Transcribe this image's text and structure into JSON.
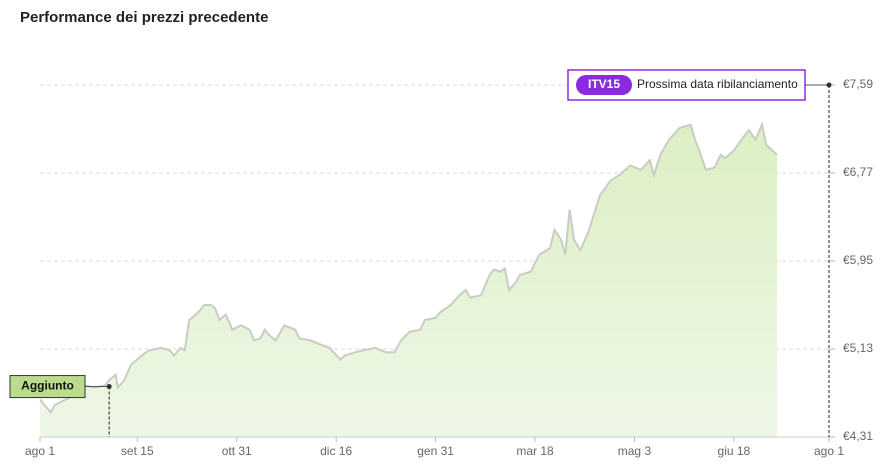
{
  "chart_data": {
    "type": "area",
    "title": "Performance dei prezzi precedente",
    "x": [
      0,
      2,
      5,
      7,
      12,
      16,
      21,
      25,
      30,
      32,
      35,
      36,
      39,
      42,
      46,
      49,
      51,
      56,
      60,
      62,
      65,
      67,
      69,
      72,
      74,
      76,
      79,
      81,
      83,
      86,
      89,
      93,
      97,
      99,
      102,
      104,
      106,
      109,
      113,
      118,
      120,
      125,
      130,
      134,
      139,
      141,
      146,
      150,
      155,
      160,
      164,
      167,
      171,
      176,
      178,
      183,
      185,
      190,
      194,
      197,
      199,
      204,
      208,
      210,
      213,
      215,
      217,
      220,
      222,
      227,
      231,
      236,
      238,
      241,
      243,
      245,
      247,
      250,
      254,
      259,
      264,
      268,
      273,
      278,
      282,
      284,
      287,
      291,
      296,
      301,
      303,
      305,
      308,
      312,
      315,
      317,
      321,
      326,
      328,
      331,
      334,
      336,
      341
    ],
    "values": [
      4.66,
      4.61,
      4.54,
      4.61,
      4.66,
      4.7,
      4.79,
      4.77,
      4.79,
      4.84,
      4.89,
      4.77,
      4.84,
      4.98,
      5.05,
      5.1,
      5.12,
      5.14,
      5.12,
      5.07,
      5.14,
      5.12,
      5.4,
      5.45,
      5.49,
      5.54,
      5.54,
      5.51,
      5.4,
      5.45,
      5.31,
      5.35,
      5.31,
      5.21,
      5.23,
      5.31,
      5.26,
      5.21,
      5.35,
      5.31,
      5.23,
      5.21,
      5.17,
      5.14,
      5.03,
      5.07,
      5.1,
      5.12,
      5.14,
      5.1,
      5.1,
      5.21,
      5.29,
      5.31,
      5.4,
      5.42,
      5.47,
      5.54,
      5.63,
      5.68,
      5.61,
      5.63,
      5.82,
      5.87,
      5.85,
      5.88,
      5.68,
      5.75,
      5.82,
      5.85,
      6.01,
      6.07,
      6.24,
      6.15,
      6.01,
      6.43,
      6.15,
      6.05,
      6.24,
      6.56,
      6.7,
      6.75,
      6.84,
      6.8,
      6.89,
      6.75,
      6.94,
      7.08,
      7.19,
      7.22,
      7.08,
      6.98,
      6.8,
      6.82,
      6.94,
      6.91,
      6.98,
      7.12,
      7.17,
      7.08,
      7.22,
      7.03,
      6.94
    ],
    "color": "#c9ccc4",
    "fill": "#e4f3d2",
    "xlim": [
      0,
      365
    ],
    "xticks": [
      {
        "value": 0,
        "label": "ago 1"
      },
      {
        "value": 45,
        "label": "set 15"
      },
      {
        "value": 91,
        "label": "ott 31"
      },
      {
        "value": 137,
        "label": "dic 16"
      },
      {
        "value": 183,
        "label": "gen 31"
      },
      {
        "value": 229,
        "label": "mar 18"
      },
      {
        "value": 275,
        "label": "mag 3"
      },
      {
        "value": 321,
        "label": "giu 18"
      },
      {
        "value": 365,
        "label": "ago 1"
      }
    ],
    "ylim": [
      4.31,
      7.59
    ],
    "yticks": [
      {
        "value": 4.31,
        "label": "€4,31"
      },
      {
        "value": 5.13,
        "label": "€5,13"
      },
      {
        "value": 5.95,
        "label": "€5,95"
      },
      {
        "value": 6.77,
        "label": "€6,77"
      },
      {
        "value": 7.59,
        "label": "€7,59"
      }
    ],
    "grid": true,
    "added": {
      "label": "Aggiunto",
      "x": 32,
      "y": 4.78
    },
    "next_rebalance": {
      "badge": "ITV15",
      "label": "Prossima data ribilanciamento",
      "x": 365,
      "y": 7.59
    }
  }
}
